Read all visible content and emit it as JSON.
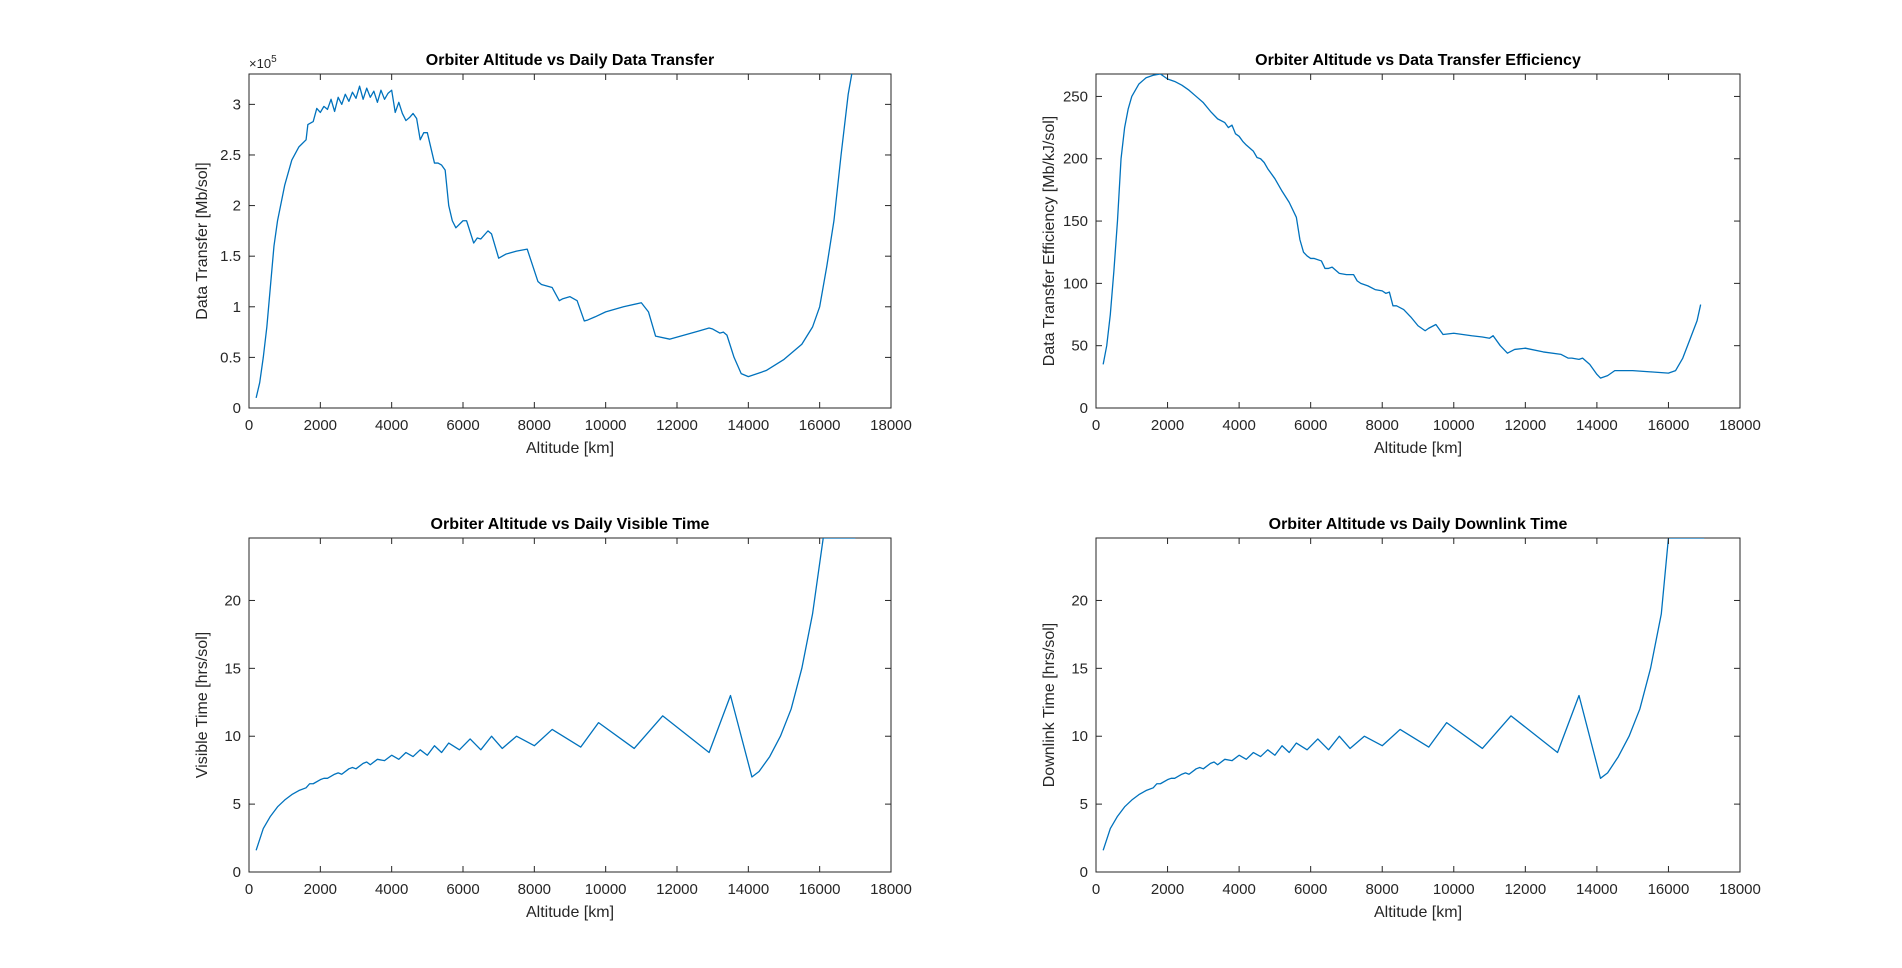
{
  "colors": {
    "series": "#0072BD",
    "axis": "#262626",
    "background": "#ffffff"
  },
  "chart_data": [
    {
      "type": "line",
      "title": "Orbiter Altitude vs Daily Data Transfer",
      "xlabel": "Altitude [km]",
      "ylabel": "Data Transfer [Mb/sol]",
      "xlim": [
        0,
        18000
      ],
      "ylim": [
        0,
        330000
      ],
      "xticks": [
        0,
        2000,
        4000,
        6000,
        8000,
        10000,
        12000,
        14000,
        16000,
        18000
      ],
      "xtick_labels": [
        "0",
        "2000",
        "4000",
        "6000",
        "8000",
        "10000",
        "12000",
        "14000",
        "16000",
        "18000"
      ],
      "yticks": [
        0,
        50000,
        100000,
        150000,
        200000,
        250000,
        300000
      ],
      "ytick_labels": [
        "0",
        "0.5",
        "1",
        "1.5",
        "2",
        "2.5",
        "3"
      ],
      "y_exponent_label": "×10",
      "y_exponent_power": "5",
      "grid": false,
      "series": [
        {
          "x": [
            200,
            300,
            400,
            500,
            600,
            700,
            800,
            1000,
            1200,
            1400,
            1600,
            1650,
            1800,
            1900,
            2000,
            2100,
            2200,
            2300,
            2400,
            2500,
            2600,
            2700,
            2800,
            2900,
            3000,
            3100,
            3200,
            3300,
            3400,
            3500,
            3600,
            3700,
            3800,
            3900,
            4000,
            4100,
            4200,
            4300,
            4400,
            4500,
            4600,
            4700,
            4800,
            4900,
            5000,
            5200,
            5300,
            5400,
            5500,
            5600,
            5700,
            5800,
            6000,
            6100,
            6300,
            6400,
            6500,
            6700,
            6800,
            7000,
            7100,
            7200,
            7300,
            7500,
            7800,
            8100,
            8200,
            8300,
            8500,
            8700,
            8800,
            9000,
            9200,
            9400,
            9500,
            9700,
            10000,
            10500,
            11000,
            11200,
            11400,
            11800,
            12200,
            12600,
            12900,
            13000,
            13200,
            13300,
            13400,
            13600,
            13800,
            14000,
            14500,
            15000,
            15500,
            15800,
            16000,
            16200,
            16400,
            16600,
            16800,
            16900
          ],
          "y": [
            10000,
            25000,
            50000,
            80000,
            120000,
            160000,
            185000,
            220000,
            245000,
            258000,
            265000,
            280000,
            283000,
            296000,
            292000,
            298000,
            295000,
            305000,
            293000,
            307000,
            300000,
            310000,
            303000,
            312000,
            306000,
            318000,
            305000,
            316000,
            307000,
            313000,
            302000,
            314000,
            305000,
            311000,
            314000,
            292000,
            302000,
            291000,
            284000,
            287000,
            291000,
            286000,
            265000,
            272000,
            272000,
            242000,
            242000,
            240000,
            235000,
            200000,
            185000,
            178000,
            185000,
            185000,
            163000,
            168000,
            167000,
            175000,
            172000,
            148000,
            150000,
            152000,
            153000,
            155000,
            157000,
            125000,
            122000,
            121000,
            119000,
            106000,
            108000,
            110000,
            106000,
            86000,
            87000,
            90000,
            95000,
            100000,
            104000,
            95000,
            71000,
            68000,
            72000,
            76000,
            79000,
            78000,
            74000,
            75000,
            72000,
            50000,
            34000,
            31000,
            37000,
            48000,
            63000,
            80000,
            100000,
            140000,
            185000,
            250000,
            310000,
            330000
          ]
        }
      ]
    },
    {
      "type": "line",
      "title": "Orbiter Altitude vs Data Transfer Efficiency",
      "xlabel": "Altitude [km]",
      "ylabel": "Data Transfer Efficiency [Mb/kJ/sol]",
      "xlim": [
        0,
        18000
      ],
      "ylim": [
        0,
        268
      ],
      "xticks": [
        0,
        2000,
        4000,
        6000,
        8000,
        10000,
        12000,
        14000,
        16000,
        18000
      ],
      "xtick_labels": [
        "0",
        "2000",
        "4000",
        "6000",
        "8000",
        "10000",
        "12000",
        "14000",
        "16000",
        "18000"
      ],
      "yticks": [
        0,
        50,
        100,
        150,
        200,
        250
      ],
      "ytick_labels": [
        "0",
        "50",
        "100",
        "150",
        "200",
        "250"
      ],
      "grid": false,
      "series": [
        {
          "x": [
            200,
            300,
            400,
            500,
            600,
            700,
            800,
            900,
            1000,
            1200,
            1400,
            1600,
            1800,
            2000,
            2200,
            2400,
            2600,
            2800,
            3000,
            3200,
            3400,
            3600,
            3700,
            3800,
            3900,
            4000,
            4100,
            4200,
            4400,
            4500,
            4600,
            4700,
            4800,
            5000,
            5200,
            5400,
            5600,
            5700,
            5800,
            5900,
            6000,
            6100,
            6300,
            6400,
            6500,
            6600,
            6800,
            7000,
            7200,
            7300,
            7400,
            7600,
            7800,
            8000,
            8100,
            8200,
            8300,
            8400,
            8600,
            8800,
            9000,
            9200,
            9300,
            9500,
            9700,
            10000,
            10500,
            10800,
            11000,
            11100,
            11300,
            11500,
            11700,
            12000,
            12500,
            13000,
            13200,
            13300,
            13500,
            13600,
            13800,
            14000,
            14100,
            14300,
            14500,
            15000,
            15500,
            16000,
            16200,
            16400,
            16600,
            16800,
            16900
          ],
          "y": [
            35,
            50,
            75,
            110,
            150,
            200,
            225,
            240,
            250,
            260,
            265,
            267,
            268,
            264,
            262,
            259,
            255,
            250,
            245,
            238,
            232,
            229,
            225,
            227,
            220,
            218,
            214,
            211,
            206,
            201,
            200,
            197,
            192,
            184,
            174,
            165,
            153,
            135,
            125,
            122,
            120,
            120,
            118,
            112,
            112,
            113,
            108,
            107,
            107,
            102,
            100,
            98,
            95,
            94,
            92,
            93,
            82,
            82,
            79,
            73,
            66,
            62,
            64,
            67,
            59,
            60,
            58,
            57,
            56,
            58,
            50,
            44,
            47,
            48,
            45,
            43,
            40,
            40,
            39,
            40,
            35,
            27,
            24,
            26,
            30,
            30,
            29,
            28,
            30,
            40,
            55,
            70,
            83
          ]
        }
      ]
    },
    {
      "type": "line",
      "title": "Orbiter Altitude vs Daily Visible Time",
      "xlabel": "Altitude [km]",
      "ylabel": "Visible Time  [hrs/sol]",
      "xlim": [
        0,
        18000
      ],
      "ylim": [
        0,
        24.6
      ],
      "xticks": [
        0,
        2000,
        4000,
        6000,
        8000,
        10000,
        12000,
        14000,
        16000,
        18000
      ],
      "xtick_labels": [
        "0",
        "2000",
        "4000",
        "6000",
        "8000",
        "10000",
        "12000",
        "14000",
        "16000",
        "18000"
      ],
      "yticks": [
        0,
        5,
        10,
        15,
        20
      ],
      "ytick_labels": [
        "0",
        "5",
        "10",
        "15",
        "20"
      ],
      "grid": false,
      "series": [
        {
          "x": [
            200,
            400,
            600,
            800,
            1000,
            1200,
            1400,
            1600,
            1700,
            1800,
            2000,
            2100,
            2200,
            2400,
            2500,
            2600,
            2800,
            2900,
            3000,
            3200,
            3300,
            3400,
            3600,
            3800,
            4000,
            4200,
            4400,
            4600,
            4800,
            5000,
            5200,
            5400,
            5600,
            5900,
            6200,
            6500,
            6800,
            7100,
            7500,
            8000,
            8500,
            9300,
            9800,
            10800,
            11600,
            12900,
            13500,
            14100,
            14300,
            14600,
            14900,
            15200,
            15500,
            15800,
            16100,
            16200,
            16400,
            16700,
            17000
          ],
          "y": [
            1.6,
            3.2,
            4.1,
            4.8,
            5.3,
            5.7,
            6.0,
            6.2,
            6.5,
            6.5,
            6.8,
            6.9,
            6.9,
            7.2,
            7.3,
            7.2,
            7.6,
            7.7,
            7.6,
            8.0,
            8.1,
            7.9,
            8.3,
            8.2,
            8.6,
            8.3,
            8.8,
            8.5,
            9.0,
            8.6,
            9.3,
            8.8,
            9.5,
            9.0,
            9.8,
            9.0,
            10.0,
            9.1,
            10.0,
            9.3,
            10.5,
            9.2,
            11.0,
            9.1,
            11.5,
            8.8,
            13.0,
            7.0,
            7.4,
            8.5,
            10.0,
            12.0,
            15.0,
            19.0,
            24.6,
            24.6,
            24.6,
            24.6,
            24.6
          ]
        }
      ]
    },
    {
      "type": "line",
      "title": "Orbiter Altitude vs Daily Downlink Time",
      "xlabel": "Altitude [km]",
      "ylabel": "Downlink Time  [hrs/sol]",
      "xlim": [
        0,
        18000
      ],
      "ylim": [
        0,
        24.6
      ],
      "xticks": [
        0,
        2000,
        4000,
        6000,
        8000,
        10000,
        12000,
        14000,
        16000,
        18000
      ],
      "xtick_labels": [
        "0",
        "2000",
        "4000",
        "6000",
        "8000",
        "10000",
        "12000",
        "14000",
        "16000",
        "18000"
      ],
      "yticks": [
        0,
        5,
        10,
        15,
        20
      ],
      "ytick_labels": [
        "0",
        "5",
        "10",
        "15",
        "20"
      ],
      "grid": false,
      "series": [
        {
          "x": [
            200,
            400,
            600,
            800,
            1000,
            1200,
            1400,
            1600,
            1700,
            1800,
            2000,
            2100,
            2200,
            2400,
            2500,
            2600,
            2800,
            2900,
            3000,
            3200,
            3300,
            3400,
            3600,
            3800,
            4000,
            4200,
            4400,
            4600,
            4800,
            5000,
            5200,
            5400,
            5600,
            5900,
            6200,
            6500,
            6800,
            7100,
            7500,
            8000,
            8500,
            9300,
            9800,
            10800,
            11600,
            12900,
            13500,
            14100,
            14300,
            14600,
            14900,
            15200,
            15500,
            15800,
            16000,
            16100,
            16400,
            16700,
            17000
          ],
          "y": [
            1.6,
            3.2,
            4.1,
            4.8,
            5.3,
            5.7,
            6.0,
            6.2,
            6.5,
            6.5,
            6.8,
            6.9,
            6.9,
            7.2,
            7.3,
            7.2,
            7.6,
            7.7,
            7.6,
            8.0,
            8.1,
            7.9,
            8.3,
            8.2,
            8.6,
            8.3,
            8.8,
            8.5,
            9.0,
            8.6,
            9.3,
            8.8,
            9.5,
            9.0,
            9.8,
            9.0,
            10.0,
            9.1,
            10.0,
            9.3,
            10.5,
            9.2,
            11.0,
            9.1,
            11.5,
            8.8,
            13.0,
            6.9,
            7.3,
            8.5,
            10.0,
            12.0,
            15.0,
            19.0,
            24.6,
            24.6,
            24.6,
            24.6,
            24.6
          ]
        }
      ]
    }
  ]
}
